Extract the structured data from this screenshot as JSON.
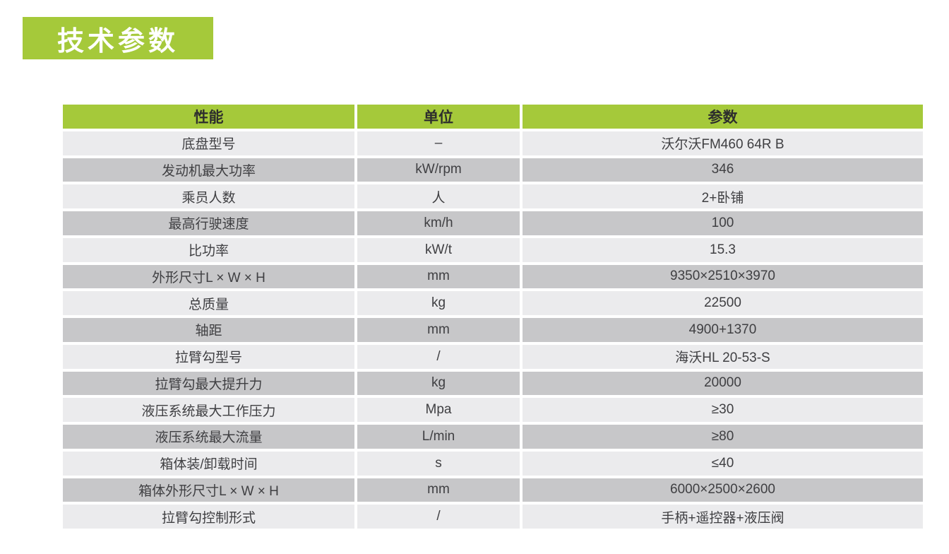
{
  "badge": {
    "label": "技术参数"
  },
  "colors": {
    "accent_green": "#a5c93a",
    "row_light": "#ebebed",
    "row_dark": "#c7c7c9",
    "header_text": "#2d2d2d",
    "body_text": "#3f3f42",
    "badge_text": "#ffffff",
    "page_background": "#ffffff"
  },
  "table": {
    "headers": [
      "性能",
      "单位",
      "参数"
    ],
    "rows": [
      {
        "name": "底盘型号",
        "unit": "–",
        "value": "沃尔沃FM460 64R B"
      },
      {
        "name": "发动机最大功率",
        "unit": "kW/rpm",
        "value": "346"
      },
      {
        "name": "乘员人数",
        "unit": "人",
        "value": "2+卧铺"
      },
      {
        "name": "最高行驶速度",
        "unit": "km/h",
        "value": "100"
      },
      {
        "name": "比功率",
        "unit": "kW/t",
        "value": "15.3"
      },
      {
        "name": "外形尺寸L × W × H",
        "unit": "mm",
        "value": "9350×2510×3970"
      },
      {
        "name": "总质量",
        "unit": "kg",
        "value": "22500"
      },
      {
        "name": "轴距",
        "unit": "mm",
        "value": "4900+1370"
      },
      {
        "name": "拉臂勾型号",
        "unit": "/",
        "value": "海沃HL 20-53-S"
      },
      {
        "name": "拉臂勾最大提升力",
        "unit": "kg",
        "value": "20000"
      },
      {
        "name": "液压系统最大工作压力",
        "unit": "Mpa",
        "value": "≥30"
      },
      {
        "name": "液压系统最大流量",
        "unit": "L/min",
        "value": "≥80"
      },
      {
        "name": "箱体装/卸载时间",
        "unit": "s",
        "value": "≤40"
      },
      {
        "name": "箱体外形尺寸L × W × H",
        "unit": "mm",
        "value": "6000×2500×2600"
      },
      {
        "name": "拉臂勾控制形式",
        "unit": "/",
        "value": "手柄+遥控器+液压阀"
      }
    ]
  }
}
